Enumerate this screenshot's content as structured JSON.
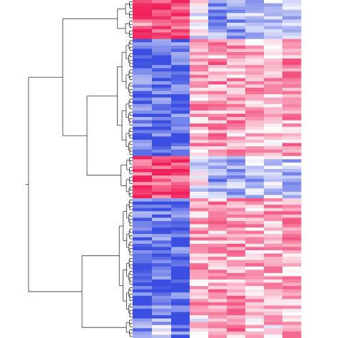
{
  "chart_data": {
    "type": "heatmap",
    "title": "",
    "xlabel": "",
    "ylabel": "",
    "column_count": 9,
    "row_dendrogram": "left",
    "color_scale": {
      "low": "#3a4fe0",
      "mid": "#ffffff",
      "high": "#f0205a"
    },
    "value_range": [
      -2,
      2
    ],
    "clusters": [
      {
        "rows": 12,
        "profile": [
          1.35,
          1.55,
          1.75,
          -0.2,
          -1.2,
          -0.9,
          -0.7,
          -0.6,
          -0.8
        ]
      },
      {
        "rows": 36,
        "profile": [
          -1.6,
          -1.55,
          -1.65,
          0.7,
          0.9,
          0.8,
          0.75,
          0.6,
          0.85
        ]
      },
      {
        "rows": 13,
        "profile": [
          1.6,
          1.5,
          1.7,
          -0.1,
          -1.0,
          -0.9,
          -0.7,
          -0.5,
          -0.7
        ]
      },
      {
        "rows": 37,
        "profile": [
          -1.6,
          -1.5,
          -1.7,
          0.7,
          0.9,
          0.8,
          0.7,
          0.7,
          0.75
        ]
      },
      {
        "rows": 6,
        "profile": [
          -1.4,
          -0.6,
          -1.5,
          0.2,
          0.8,
          0.9,
          0.5,
          0.4,
          0.6
        ]
      }
    ]
  }
}
